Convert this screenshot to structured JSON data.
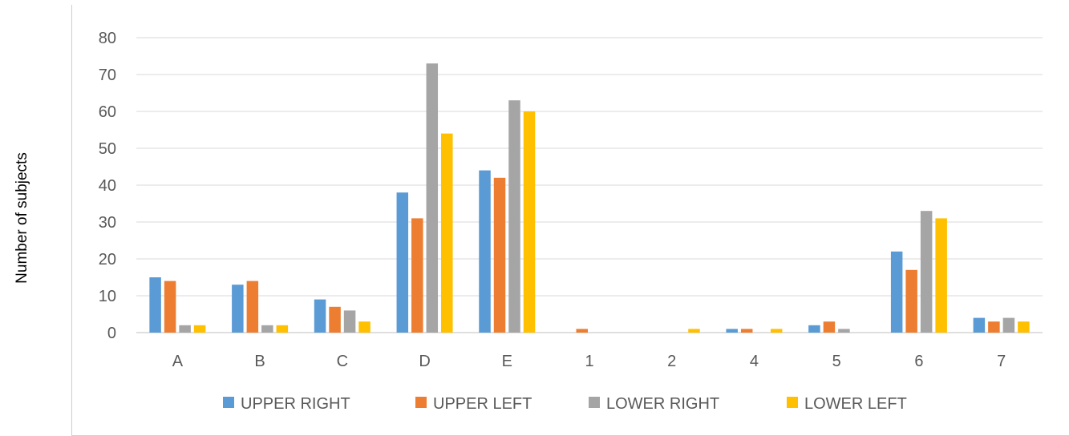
{
  "chart_data": {
    "type": "bar",
    "title": "",
    "xlabel": "",
    "ylabel": "Number of subjects",
    "ylim": [
      0,
      80
    ],
    "yticks": [
      0,
      10,
      20,
      30,
      40,
      50,
      60,
      70,
      80
    ],
    "grid": true,
    "legend_position": "bottom",
    "categories": [
      "A",
      "B",
      "C",
      "D",
      "E",
      "1",
      "2",
      "4",
      "5",
      "6",
      "7"
    ],
    "series": [
      {
        "name": "UPPER RIGHT",
        "color": "#5b9bd5",
        "values": [
          15,
          13,
          9,
          38,
          44,
          0,
          0,
          1,
          2,
          22,
          4
        ]
      },
      {
        "name": "UPPER LEFT",
        "color": "#ed7d31",
        "values": [
          14,
          14,
          7,
          31,
          42,
          1,
          0,
          1,
          3,
          17,
          3
        ]
      },
      {
        "name": "LOWER RIGHT",
        "color": "#a5a5a5",
        "values": [
          2,
          2,
          6,
          73,
          63,
          0,
          0,
          0,
          1,
          33,
          4
        ]
      },
      {
        "name": "LOWER LEFT",
        "color": "#ffc000",
        "values": [
          2,
          2,
          3,
          54,
          60,
          0,
          1,
          1,
          0,
          31,
          3
        ]
      }
    ]
  }
}
